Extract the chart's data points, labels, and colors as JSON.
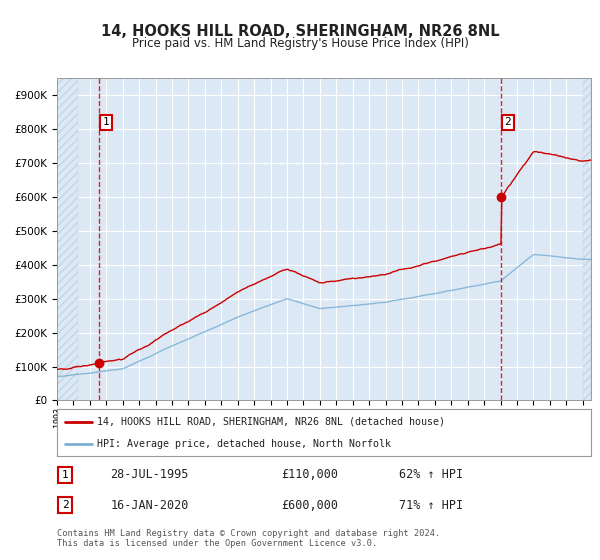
{
  "title": "14, HOOKS HILL ROAD, SHERINGHAM, NR26 8NL",
  "subtitle": "Price paid vs. HM Land Registry's House Price Index (HPI)",
  "legend_line1": "14, HOOKS HILL ROAD, SHERINGHAM, NR26 8NL (detached house)",
  "legend_line2": "HPI: Average price, detached house, North Norfolk",
  "annotation1_date": "28-JUL-1995",
  "annotation1_price": "£110,000",
  "annotation1_hpi": "62% ↑ HPI",
  "annotation2_date": "16-JAN-2020",
  "annotation2_price": "£600,000",
  "annotation2_hpi": "71% ↑ HPI",
  "footer": "Contains HM Land Registry data © Crown copyright and database right 2024.\nThis data is licensed under the Open Government Licence v3.0.",
  "sale1_year": 1995.57,
  "sale1_price": 110000,
  "sale2_year": 2020.04,
  "sale2_price": 600000,
  "hpi_color": "#7bafd4",
  "price_color": "#cc0000",
  "plot_bg_color": "#dce9f5",
  "grid_color": "#ffffff",
  "hatch_fg": "#c5d5e5",
  "hatch_bg": "#dce9f5",
  "ylim_max": 950000,
  "xmin": 1993,
  "xmax": 2025.5,
  "yticks": [
    0,
    100000,
    200000,
    300000,
    400000,
    500000,
    600000,
    700000,
    800000,
    900000
  ]
}
